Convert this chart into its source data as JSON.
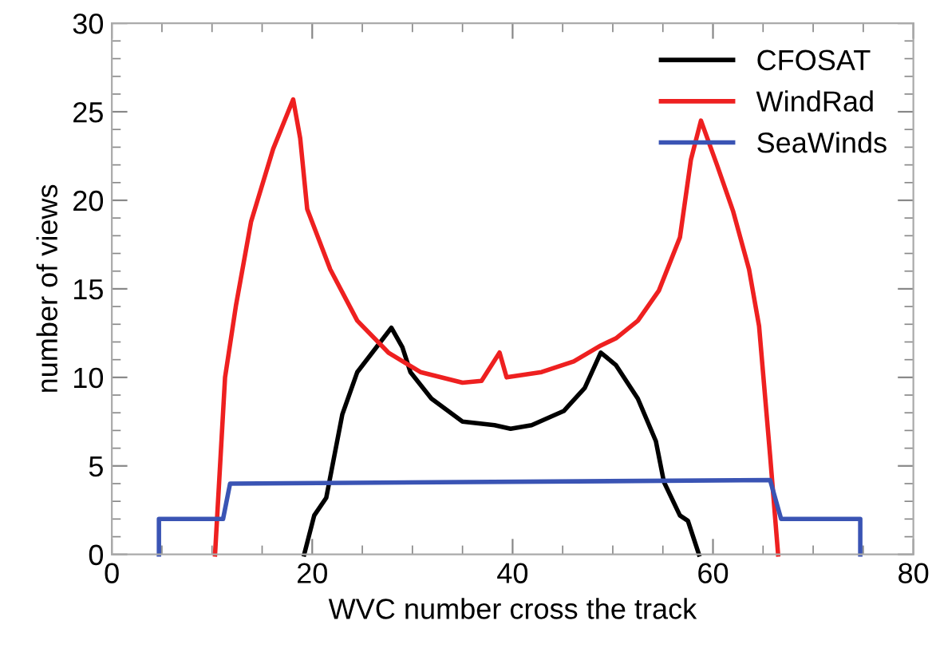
{
  "chart_data": {
    "type": "line",
    "xlabel": "WVC number cross the track",
    "ylabel": "number of views",
    "xlim": [
      0,
      80
    ],
    "ylim": [
      0,
      30
    ],
    "xticks": [
      0,
      20,
      40,
      60,
      80
    ],
    "yticks": [
      0,
      5,
      10,
      15,
      20,
      25,
      30
    ],
    "grid": false,
    "legend": "top right",
    "marker": "none",
    "line_style": "solid",
    "series": [
      {
        "name": "CFOSAT",
        "color": "#000000",
        "x": [
          19.2,
          20.2,
          21.4,
          23.0,
          24.5,
          27.9,
          29.0,
          29.8,
          31.9,
          35.0,
          38.2,
          39.8,
          41.9,
          45.1,
          47.2,
          48.8,
          50.3,
          52.5,
          54.3,
          55.1,
          56.7,
          57.5,
          58.6
        ],
        "values": [
          0,
          2.2,
          3.2,
          7.9,
          10.3,
          12.8,
          11.7,
          10.3,
          8.8,
          7.5,
          7.3,
          7.1,
          7.3,
          8.1,
          9.4,
          11.4,
          10.7,
          8.8,
          6.4,
          4.1,
          2.2,
          1.9,
          0
        ]
      },
      {
        "name": "WindRad",
        "color": "#ee2020",
        "x": [
          10.3,
          11.3,
          12.4,
          13.9,
          16.1,
          18.1,
          18.8,
          19.5,
          21.8,
          24.5,
          27.6,
          30.8,
          35.0,
          36.9,
          38.7,
          39.4,
          42.9,
          46.1,
          48.8,
          50.3,
          52.5,
          54.6,
          56.7,
          57.8,
          58.8,
          60.4,
          62.0,
          63.6,
          64.6,
          65.7,
          66.5
        ],
        "values": [
          0,
          10.0,
          14.1,
          18.8,
          22.9,
          25.7,
          23.5,
          19.5,
          16.1,
          13.2,
          11.4,
          10.3,
          9.7,
          9.8,
          11.4,
          10.0,
          10.3,
          10.9,
          11.8,
          12.2,
          13.2,
          14.9,
          17.9,
          22.3,
          24.5,
          22.0,
          19.4,
          16.1,
          12.9,
          5.6,
          0
        ]
      },
      {
        "name": "SeaWinds",
        "color": "#3a54b4",
        "x": [
          4.7,
          4.7,
          11.1,
          11.8,
          65.7,
          66.8,
          74.7,
          74.7
        ],
        "values": [
          0,
          2.0,
          2.0,
          4.0,
          4.2,
          2.0,
          2.0,
          0
        ]
      }
    ]
  }
}
